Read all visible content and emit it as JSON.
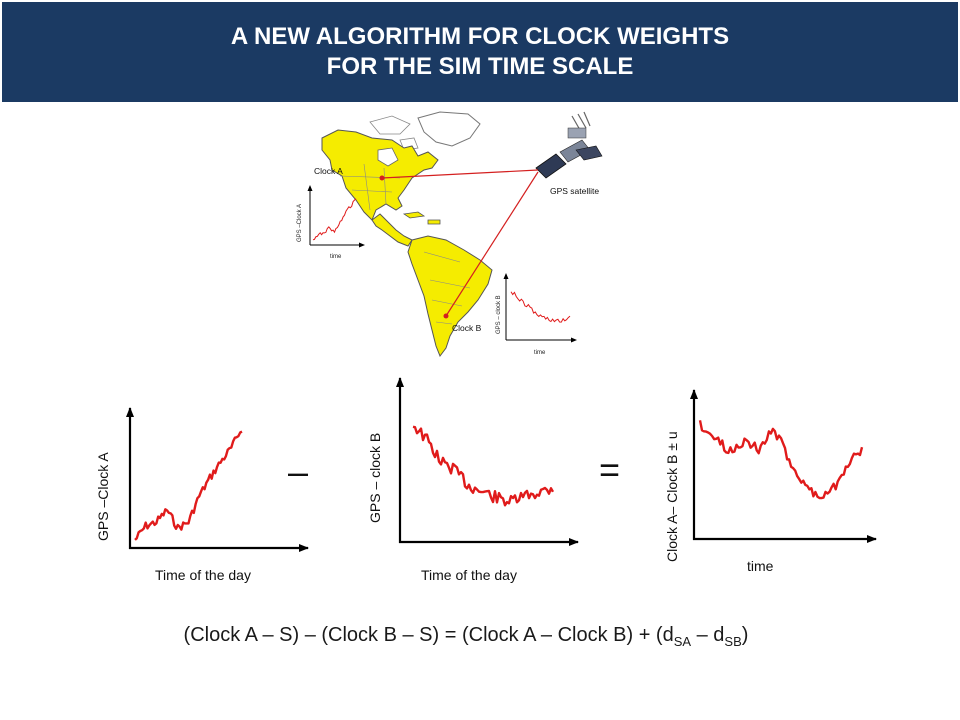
{
  "title": {
    "line1": "A NEW ALGORITHM FOR CLOCK WEIGHTS",
    "line2": "FOR THE SIM TIME SCALE"
  },
  "map": {
    "clock_a_label": "Clock A",
    "clock_b_label": "Clock B",
    "satellite_label": "GPS satellite",
    "inset_a": {
      "ylabel": "GPS –Clock A",
      "xlabel": "time"
    },
    "inset_b": {
      "ylabel": "GPS – clock B",
      "xlabel": "time"
    }
  },
  "panels": {
    "a": {
      "ylabel": "GPS –Clock A",
      "xlabel": "Time of the day"
    },
    "b": {
      "ylabel": "GPS – clock B",
      "xlabel": "Time of the day"
    },
    "c": {
      "ylabel": "Clock A– Clock B ± u",
      "xlabel": "time"
    }
  },
  "operators": {
    "minus": "–",
    "equals": "="
  },
  "formula": {
    "left": "(Clock A – S) – (Clock B – S) = (Clock A – Clock B) + (d",
    "sub1": "SA",
    "mid": " – d",
    "sub2": "SB",
    "right": ")"
  },
  "colors": {
    "title_bg": "#1b3a63",
    "trace": "#e01b1b",
    "land": "#f5ec00",
    "axis": "#000000"
  }
}
